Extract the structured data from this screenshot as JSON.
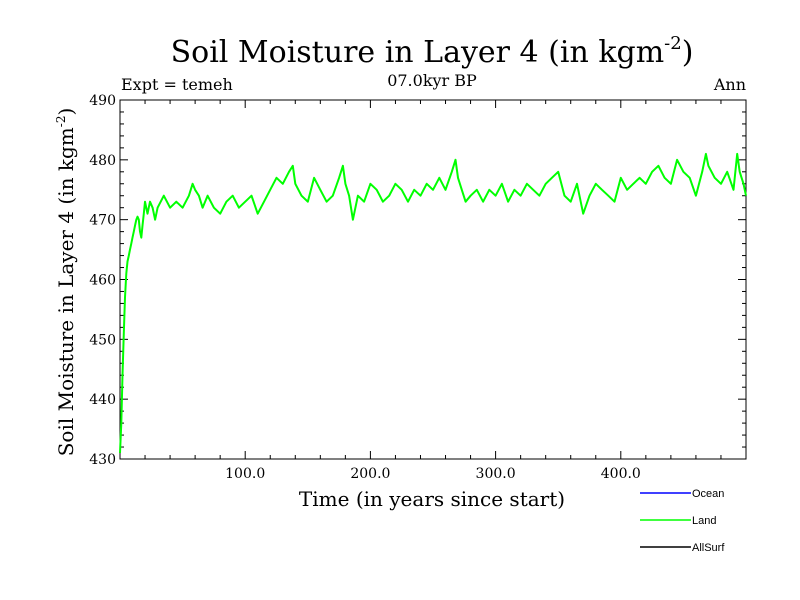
{
  "chart_data": {
    "type": "line",
    "title": "Soil Moisture in Layer 4 (in kgm",
    "title_sup": "-2",
    "title_close": ")",
    "subtitle_left": "Expt = temeh",
    "subtitle_center": "07.0kyr BP",
    "subtitle_right": "Ann",
    "xlabel": "Time (in years since start)",
    "ylabel": "Soil Moisture in Layer 4 (in kgm",
    "ylabel_sup": "-2",
    "ylabel_close": ")",
    "xlim": [
      0,
      500
    ],
    "ylim": [
      430,
      490
    ],
    "x_ticks": [
      {
        "value": 100,
        "label": "100.0"
      },
      {
        "value": 200,
        "label": "200.0"
      },
      {
        "value": 300,
        "label": "300.0"
      },
      {
        "value": 400,
        "label": "400.0"
      }
    ],
    "y_ticks": [
      {
        "value": 430,
        "label": "430"
      },
      {
        "value": 440,
        "label": "440"
      },
      {
        "value": 450,
        "label": "450"
      },
      {
        "value": 460,
        "label": "460"
      },
      {
        "value": 470,
        "label": "470"
      },
      {
        "value": 480,
        "label": "480"
      },
      {
        "value": 490,
        "label": "490"
      }
    ],
    "legend": [
      {
        "name": "Ocean",
        "color": "#0000ff"
      },
      {
        "name": "Land",
        "color": "#00ff00"
      },
      {
        "name": "AllSurf",
        "color": "#000000"
      }
    ],
    "series": [
      {
        "name": "Land",
        "color": "#00ff00",
        "x": [
          0,
          1,
          2,
          3,
          4,
          5,
          6,
          7,
          8,
          9,
          10,
          11,
          12,
          13,
          14,
          15,
          16,
          17,
          18,
          19,
          20,
          22,
          24,
          26,
          28,
          30,
          35,
          40,
          45,
          50,
          55,
          58,
          60,
          63,
          66,
          70,
          75,
          80,
          85,
          90,
          95,
          100,
          105,
          110,
          115,
          120,
          125,
          130,
          135,
          138,
          140,
          145,
          150,
          155,
          160,
          165,
          170,
          175,
          178,
          180,
          183,
          186,
          190,
          195,
          200,
          205,
          210,
          215,
          220,
          225,
          230,
          235,
          240,
          245,
          250,
          255,
          260,
          265,
          268,
          270,
          273,
          276,
          280,
          285,
          290,
          295,
          300,
          305,
          310,
          315,
          320,
          325,
          330,
          335,
          340,
          345,
          350,
          355,
          360,
          365,
          370,
          375,
          380,
          385,
          390,
          395,
          400,
          405,
          410,
          415,
          420,
          425,
          430,
          435,
          440,
          445,
          450,
          455,
          460,
          465,
          468,
          470,
          475,
          480,
          485,
          490,
          493,
          495,
          498,
          500
        ],
        "values": [
          431,
          436,
          444,
          451,
          457,
          461,
          463,
          464,
          465,
          466,
          467,
          468,
          469,
          470,
          470.5,
          470,
          468,
          467,
          469,
          471,
          473,
          471,
          473,
          472,
          470,
          472,
          474,
          472,
          473,
          472,
          474,
          476,
          475,
          474,
          472,
          474,
          472,
          471,
          473,
          474,
          472,
          473,
          474,
          471,
          473,
          475,
          477,
          476,
          478,
          479,
          476,
          474,
          473,
          477,
          475,
          473,
          474,
          477,
          479,
          476,
          474,
          470,
          474,
          473,
          476,
          475,
          473,
          474,
          476,
          475,
          473,
          475,
          474,
          476,
          475,
          477,
          475,
          478,
          480,
          477,
          475,
          473,
          474,
          475,
          473,
          475,
          474,
          476,
          473,
          475,
          474,
          476,
          475,
          474,
          476,
          477,
          478,
          474,
          473,
          476,
          471,
          474,
          476,
          475,
          474,
          473,
          477,
          475,
          476,
          477,
          476,
          478,
          479,
          477,
          476,
          480,
          478,
          477,
          474,
          478,
          481,
          479,
          477,
          476,
          478,
          475,
          481,
          478,
          476,
          474
        ]
      }
    ]
  }
}
